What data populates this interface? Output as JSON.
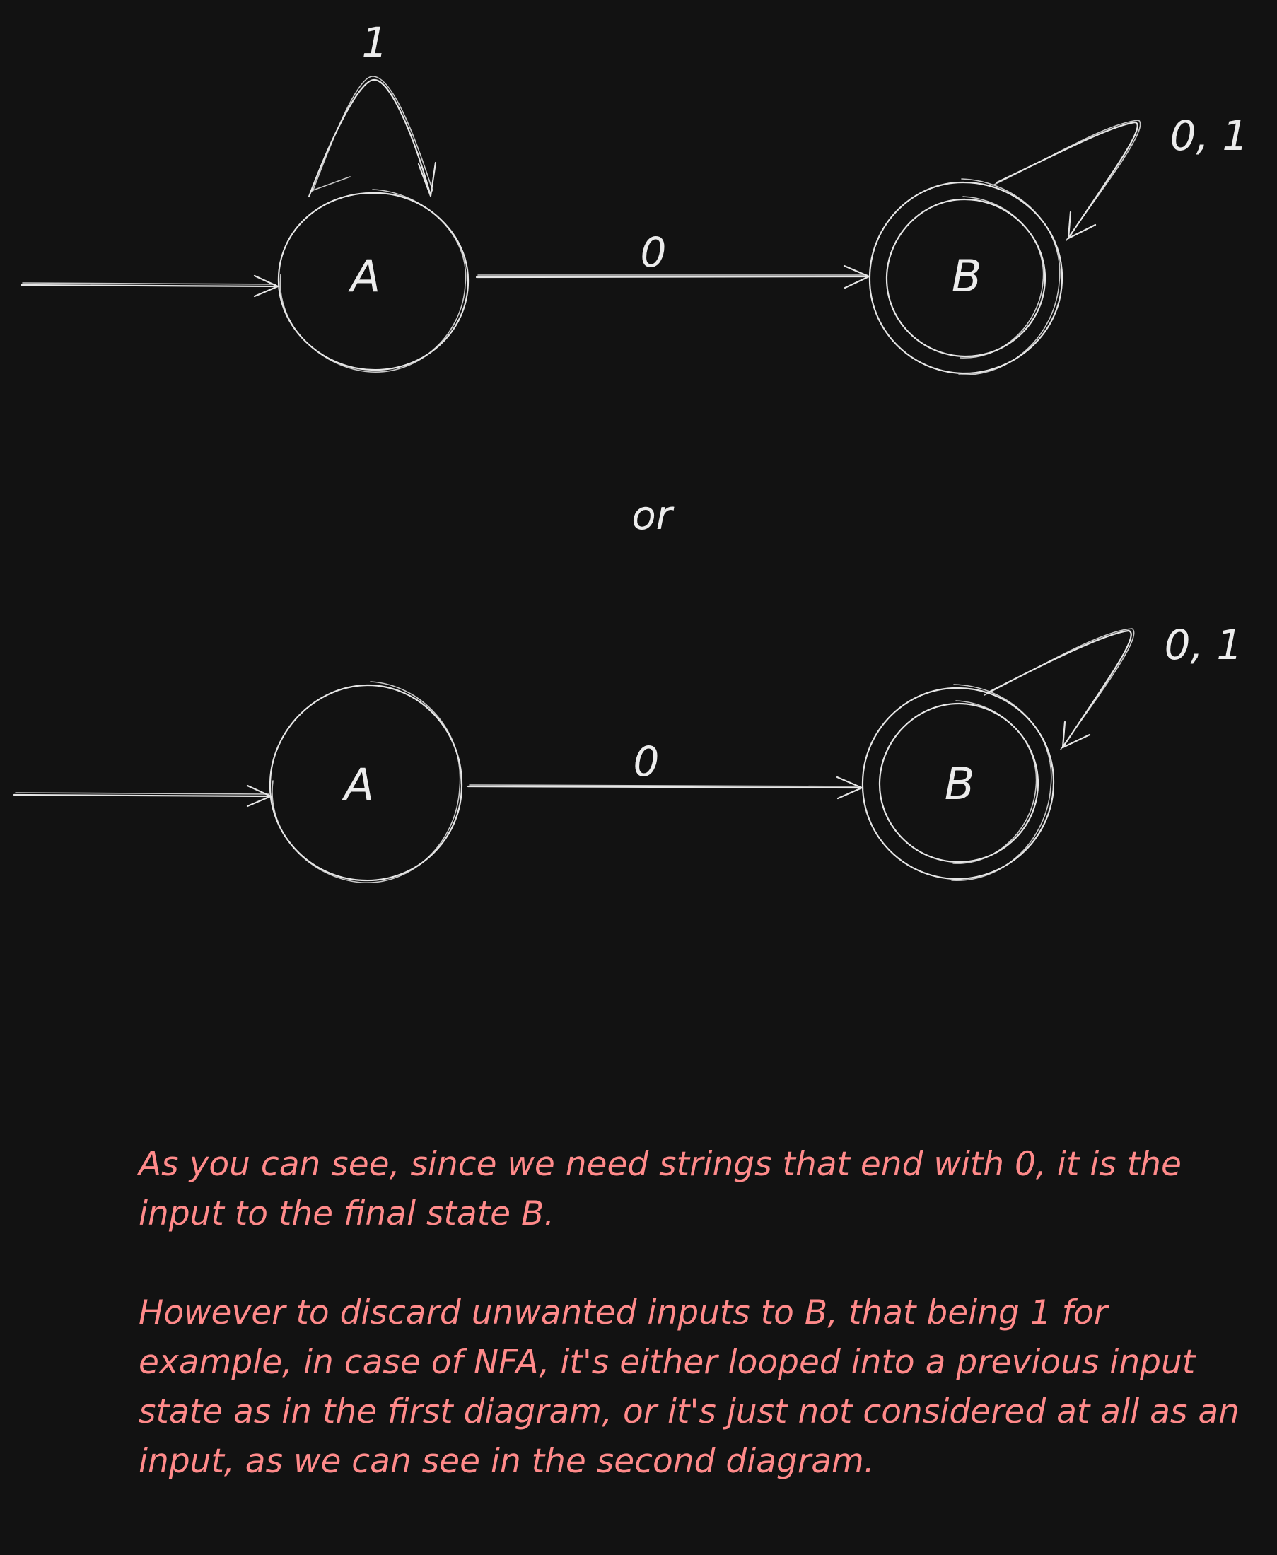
{
  "diagrams": [
    {
      "states": [
        {
          "id": "A",
          "label": "A",
          "start": true,
          "final": false
        },
        {
          "id": "B",
          "label": "B",
          "start": false,
          "final": true
        }
      ],
      "transitions": [
        {
          "from": "A",
          "to": "A",
          "label": "1"
        },
        {
          "from": "A",
          "to": "B",
          "label": "0"
        },
        {
          "from": "B",
          "to": "B",
          "label": "0, 1"
        }
      ]
    },
    {
      "states": [
        {
          "id": "A",
          "label": "A",
          "start": true,
          "final": false
        },
        {
          "id": "B",
          "label": "B",
          "start": false,
          "final": true
        }
      ],
      "transitions": [
        {
          "from": "A",
          "to": "B",
          "label": "0"
        },
        {
          "from": "B",
          "to": "B",
          "label": "0, 1"
        }
      ]
    }
  ],
  "separator": "or",
  "note": {
    "paragraph1": "As you can see, since we need strings that end with 0, it is the input to the final state B.",
    "paragraph2": "However to discard unwanted inputs to B, that being 1 for example, in case of NFA, it's either looped into a previous input state as in the first diagram, or it's just not considered at all as an input, as we can see in the second diagram."
  },
  "colors": {
    "background": "#121212",
    "stroke": "#e6e6e6",
    "note_text": "#ff8a8a"
  }
}
